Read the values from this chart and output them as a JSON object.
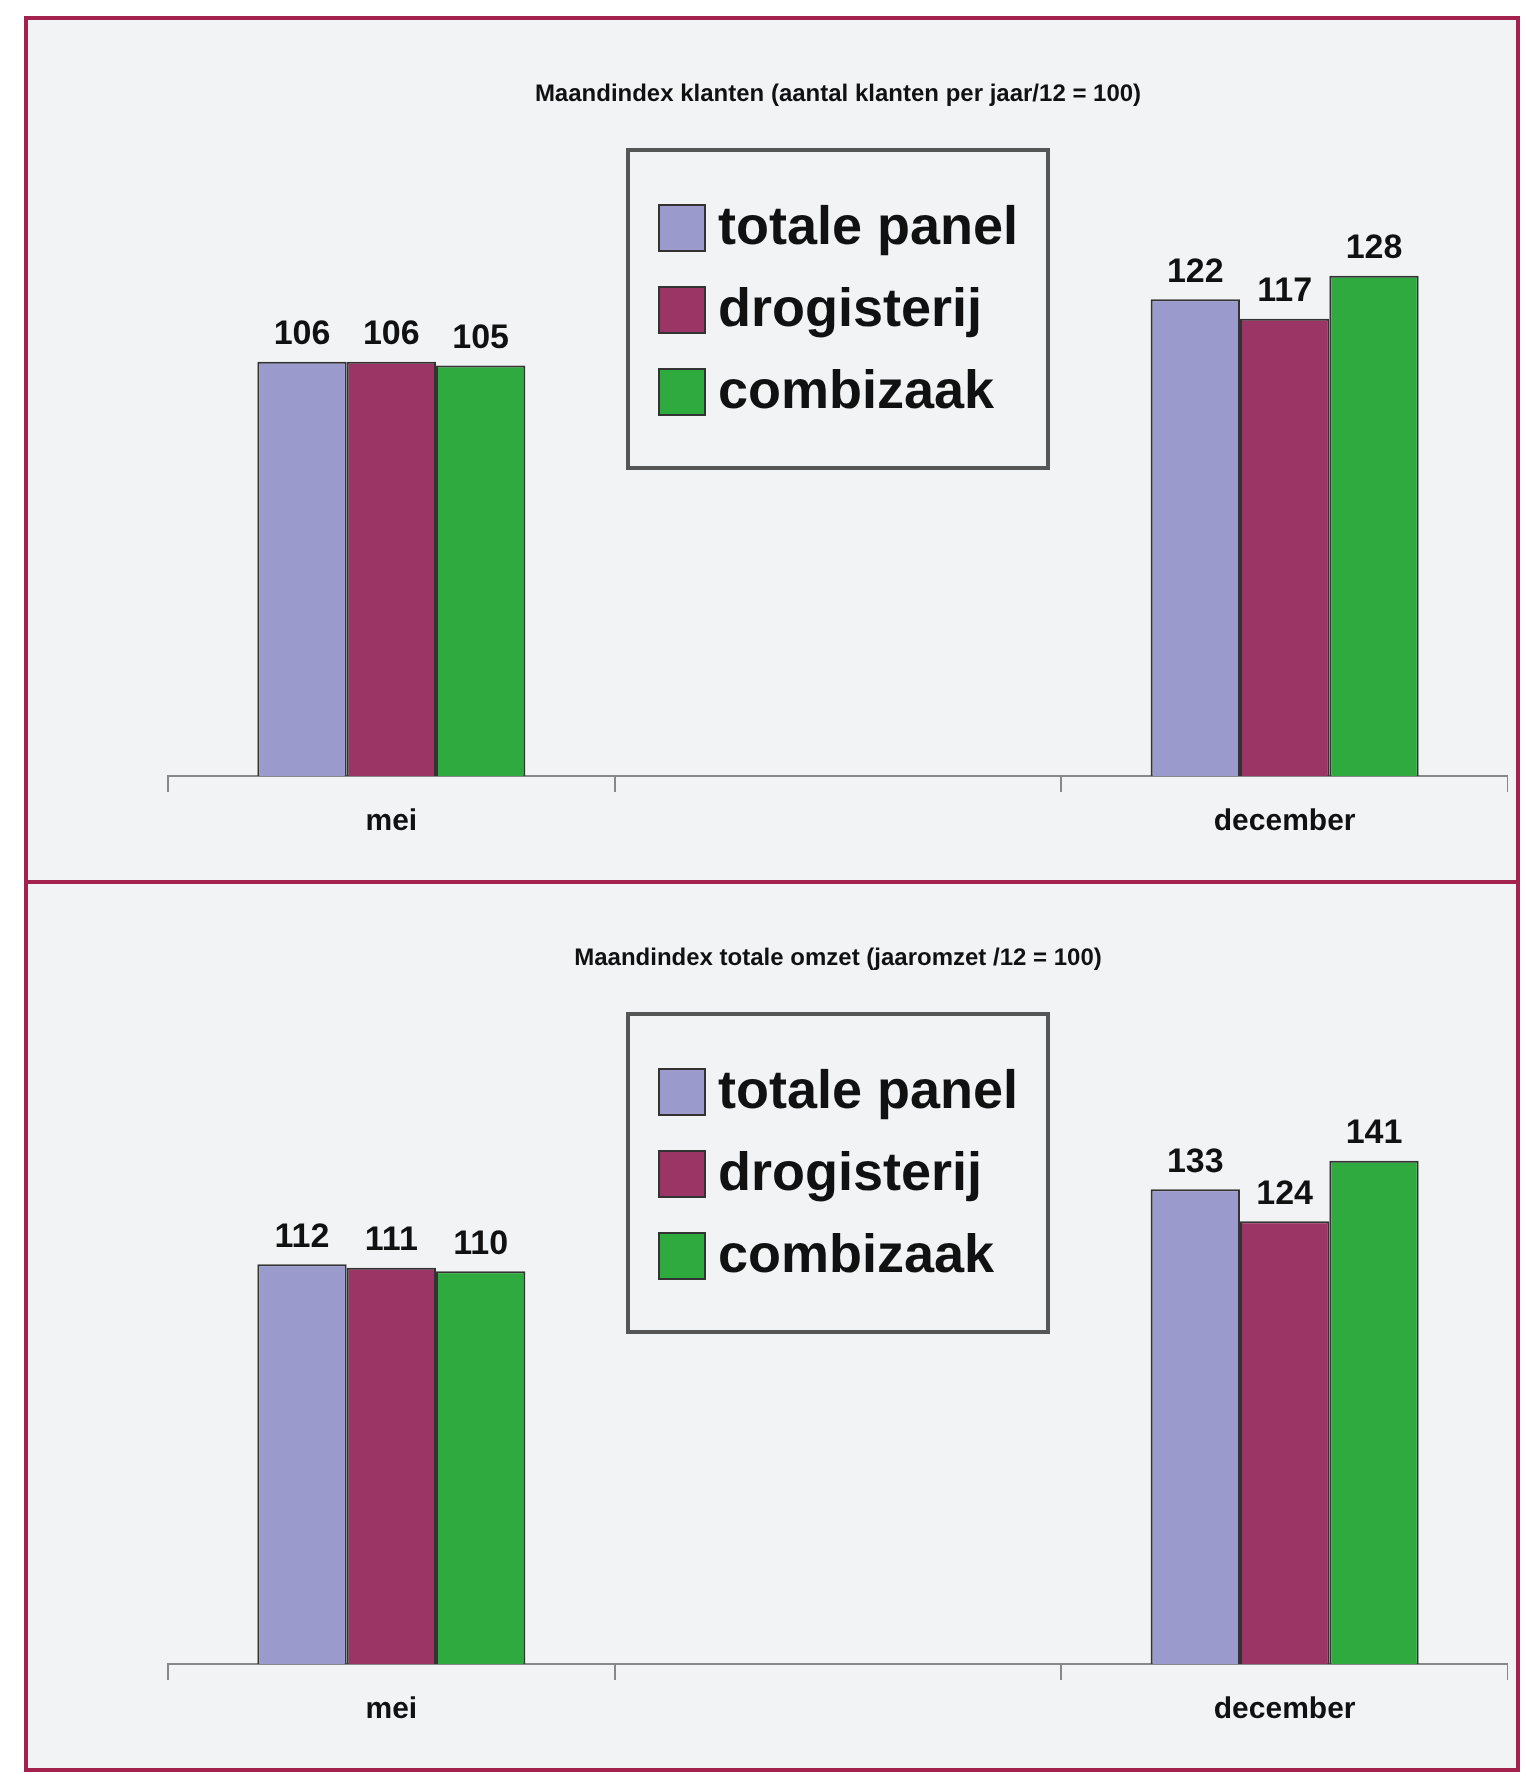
{
  "chart_data": [
    {
      "type": "bar",
      "title": "Maandindex klanten (aantal klanten per jaar/12 = 100)",
      "categories": [
        "mei",
        null,
        "december"
      ],
      "series": [
        {
          "name": "totale panel",
          "color": "#9a9acc",
          "values": [
            106,
            null,
            122
          ]
        },
        {
          "name": "drogisterij",
          "color": "#9b3566",
          "values": [
            106,
            null,
            117
          ]
        },
        {
          "name": "combizaak",
          "color": "#2eaa3e",
          "values": [
            105,
            null,
            128
          ]
        }
      ],
      "data_labels": true,
      "legend": "top",
      "grid": false
    },
    {
      "type": "bar",
      "title": "Maandindex totale omzet (jaaromzet /12 = 100)",
      "categories": [
        "mei",
        null,
        "december"
      ],
      "series": [
        {
          "name": "totale panel",
          "color": "#9a9acc",
          "values": [
            112,
            null,
            133
          ]
        },
        {
          "name": "drogisterij",
          "color": "#9b3566",
          "values": [
            111,
            null,
            124
          ]
        },
        {
          "name": "combizaak",
          "color": "#2eaa3e",
          "values": [
            110,
            null,
            141
          ]
        }
      ],
      "data_labels": true,
      "legend": "top",
      "grid": false
    }
  ]
}
